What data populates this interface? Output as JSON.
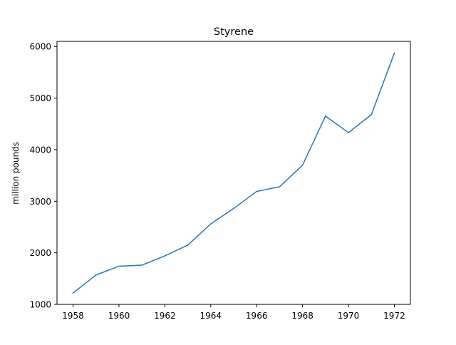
{
  "chart_data": {
    "type": "line",
    "title": "Styrene",
    "xlabel": "",
    "ylabel": "million pounds",
    "xlim": [
      1957.3,
      1972.7
    ],
    "ylim": [
      1000,
      6100
    ],
    "xticks": [
      1958,
      1960,
      1962,
      1964,
      1966,
      1968,
      1970,
      1972
    ],
    "yticks": [
      1000,
      2000,
      3000,
      4000,
      5000,
      6000
    ],
    "grid": false,
    "series": [
      {
        "color": "#1f77b4",
        "x": [
          1958,
          1959,
          1960,
          1961,
          1962,
          1963,
          1964,
          1965,
          1966,
          1967,
          1968,
          1969,
          1970,
          1971,
          1972
        ],
        "y": [
          1220,
          1570,
          1740,
          1760,
          1940,
          2150,
          2560,
          2860,
          3190,
          3280,
          3700,
          4650,
          4330,
          4680,
          5870
        ]
      }
    ]
  }
}
